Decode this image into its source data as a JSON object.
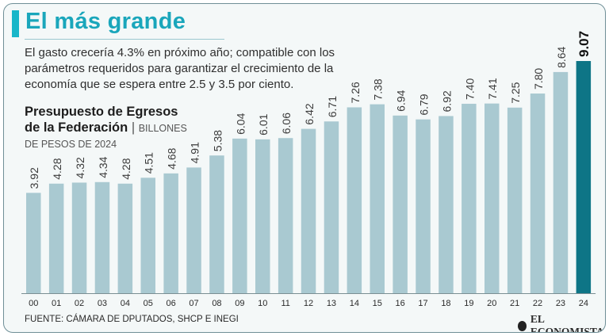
{
  "headline": "El más grande",
  "intro": "El gasto crecería 4.3% en próximo año; compatible con los parámetros requeridos para garantizar el crecimiento de la economía que se espera entre 2.5 y 3.5 por ciento.",
  "chart_title": {
    "line1": "Presupuesto de Egresos",
    "line2": "de la Federación",
    "separator": "|",
    "units_line1": "BILLONES",
    "units_line2": "DE PESOS DE 2024"
  },
  "source": "FUENTE: CÁMARA DE DPUTADOS, SHCP E INEGI",
  "logo_text": "EL ECONOMISTA",
  "colors": {
    "accent": "#19b6c9",
    "headline": "#1aa6bb",
    "bar": "#a9c9d1",
    "bar_highlight": "#0e7586",
    "label": "#3b3b3b"
  },
  "chart_data": {
    "type": "bar",
    "title": "Presupuesto de Egresos de la Federación",
    "ylabel": "Billones de pesos de 2024",
    "xlabel": "",
    "categories": [
      "00",
      "01",
      "02",
      "03",
      "04",
      "05",
      "06",
      "07",
      "08",
      "09",
      "10",
      "11",
      "12",
      "13",
      "14",
      "15",
      "16",
      "17",
      "18",
      "19",
      "20",
      "21",
      "22",
      "23",
      "24"
    ],
    "values": [
      3.92,
      4.28,
      4.32,
      4.34,
      4.28,
      4.51,
      4.68,
      4.91,
      5.38,
      6.04,
      6.01,
      6.06,
      6.42,
      6.71,
      7.26,
      7.38,
      6.94,
      6.79,
      6.92,
      7.4,
      7.41,
      7.25,
      7.8,
      8.64,
      9.07
    ],
    "labels": [
      "3.92",
      "4.28",
      "4.32",
      "4.34",
      "4.28",
      "4.51",
      "4.68",
      "4.91",
      "5.38",
      "6.04",
      "6.01",
      "6.06",
      "6.42",
      "6.71",
      "7.26",
      "7.38",
      "6.94",
      "6.79",
      "6.92",
      "7.40",
      "7.41",
      "7.25",
      "7.80",
      "8.64",
      "9.07"
    ],
    "highlight_category": "24",
    "ylim": [
      0,
      9.07
    ]
  }
}
